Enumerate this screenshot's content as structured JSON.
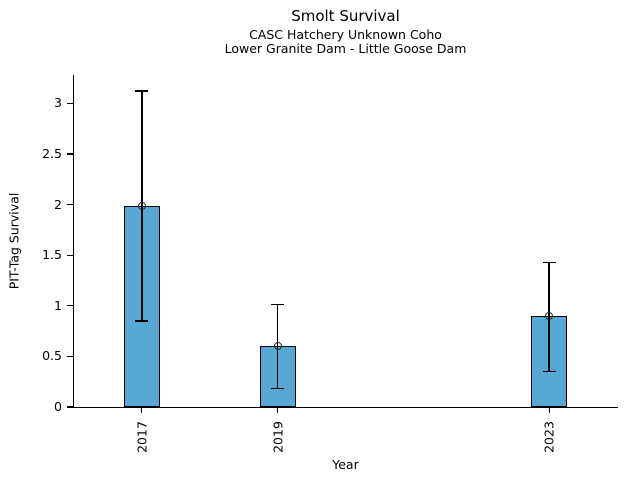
{
  "chart_data": {
    "type": "bar",
    "title": "Smolt Survival",
    "subtitle_lines": [
      "CASC Hatchery Unknown Coho",
      "Lower Granite Dam - Little Goose Dam"
    ],
    "xlabel": "Year",
    "ylabel": "PIT-Tag Survival",
    "categories": [
      "2017",
      "2019",
      "2023"
    ],
    "x_values": [
      2017,
      2019,
      2023
    ],
    "values": [
      1.99,
      0.6,
      0.9
    ],
    "error_low": [
      0.85,
      0.18,
      0.35
    ],
    "error_high": [
      3.12,
      1.01,
      1.43
    ],
    "xlim": [
      2016,
      2024
    ],
    "ylim": [
      0,
      3.28
    ],
    "yticks": [
      0,
      0.5,
      1,
      1.5,
      2,
      2.5,
      3
    ],
    "ytick_labels": [
      "0",
      "0.5",
      "1",
      "1.5",
      "2",
      "2.5",
      "3"
    ],
    "grid": false,
    "legend": "none",
    "marker": "open-circle",
    "colors": {
      "bar_fill": "#58A8D5",
      "bar_edge": "#000000",
      "error": "#000000",
      "marker_edge": "#2b2b2b",
      "text": "#000000"
    }
  }
}
